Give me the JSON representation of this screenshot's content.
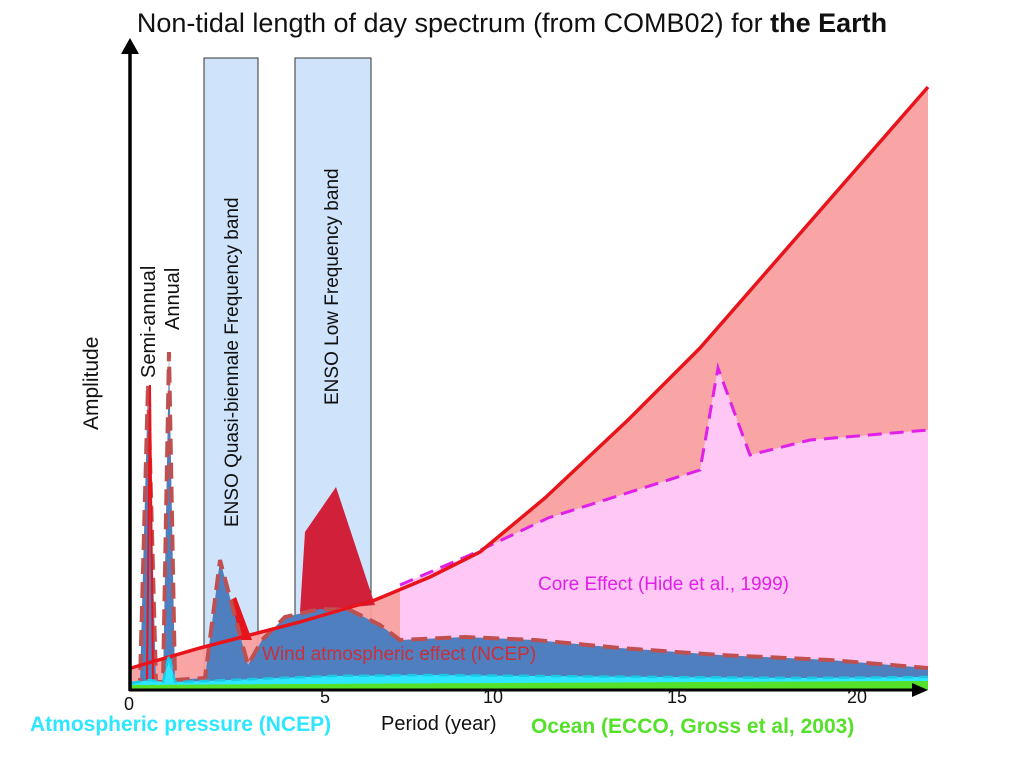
{
  "title": {
    "text": "Non-tidal length of day spectrum (from COMB02) for ",
    "bold": "the Earth"
  },
  "axes": {
    "y_label": "Amplitude",
    "x_label": "Period (year)",
    "x_ticks": [
      "0",
      "5",
      "10",
      "15",
      "20"
    ]
  },
  "peaks": {
    "semi_annual": "Semi-annual",
    "annual": "Annual"
  },
  "bands": {
    "quasi_biennale": "ENSO Quasi-biennale Frequency band",
    "low_frequency": "ENSO Low Frequency band"
  },
  "annotations": {
    "core_effect": "Core Effect (Hide et al., 1999)",
    "wind": "Wind atmospheric effect (NCEP)",
    "atmospheric_pressure": "Atmospheric pressure (NCEP)",
    "ocean": "Ocean (ECCO, Gross et al, 2003)"
  },
  "colors": {
    "total": "#e8141c",
    "total_fill": "#f9a0a0",
    "core_fill": "#ffc8f4",
    "core_line": "#e020e8",
    "wind_fill": "#4f7fbf",
    "wind_line": "#c05050",
    "pressure": "#2ee6ff",
    "ocean": "#55e02a",
    "band_fill": "#cfe3fb"
  }
}
